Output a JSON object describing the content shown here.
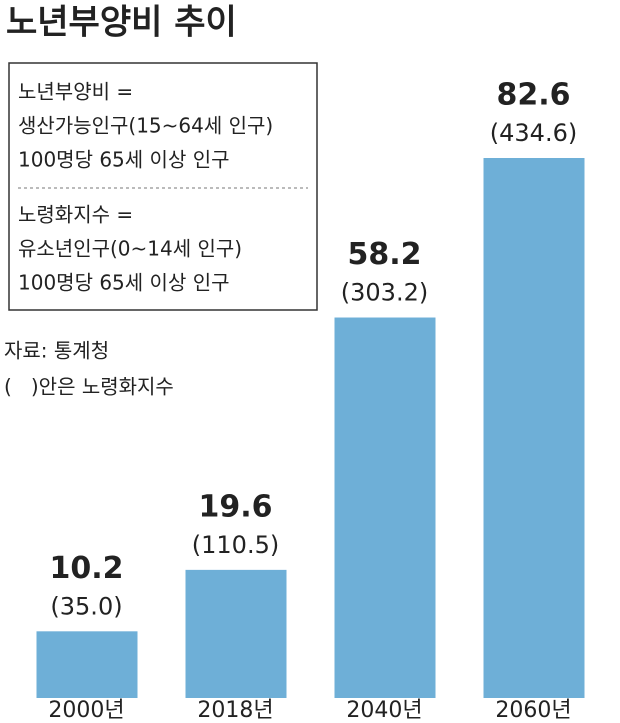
{
  "chart_data": {
    "type": "bar",
    "title": "노년부양비 추이",
    "definition_lines": [
      "노년부양비 =",
      "생산가능인구(15~64세 인구)",
      "100명당 65세 이상 인구"
    ],
    "index_lines": [
      "노령화지수 =",
      "유소년인구(0~14세 인구)",
      "100명당 65세 이상 인구"
    ],
    "source": "자료: 통계청",
    "note": "(   )안은 노령화지수",
    "categories": [
      "2000년",
      "2018년",
      "2040년",
      "2060년"
    ],
    "values": [
      10.2,
      19.6,
      58.2,
      82.6
    ],
    "secondary_labels": [
      "(35.0)",
      "(110.5)",
      "(303.2)",
      "(434.6)"
    ],
    "color": "#6eafd7"
  }
}
